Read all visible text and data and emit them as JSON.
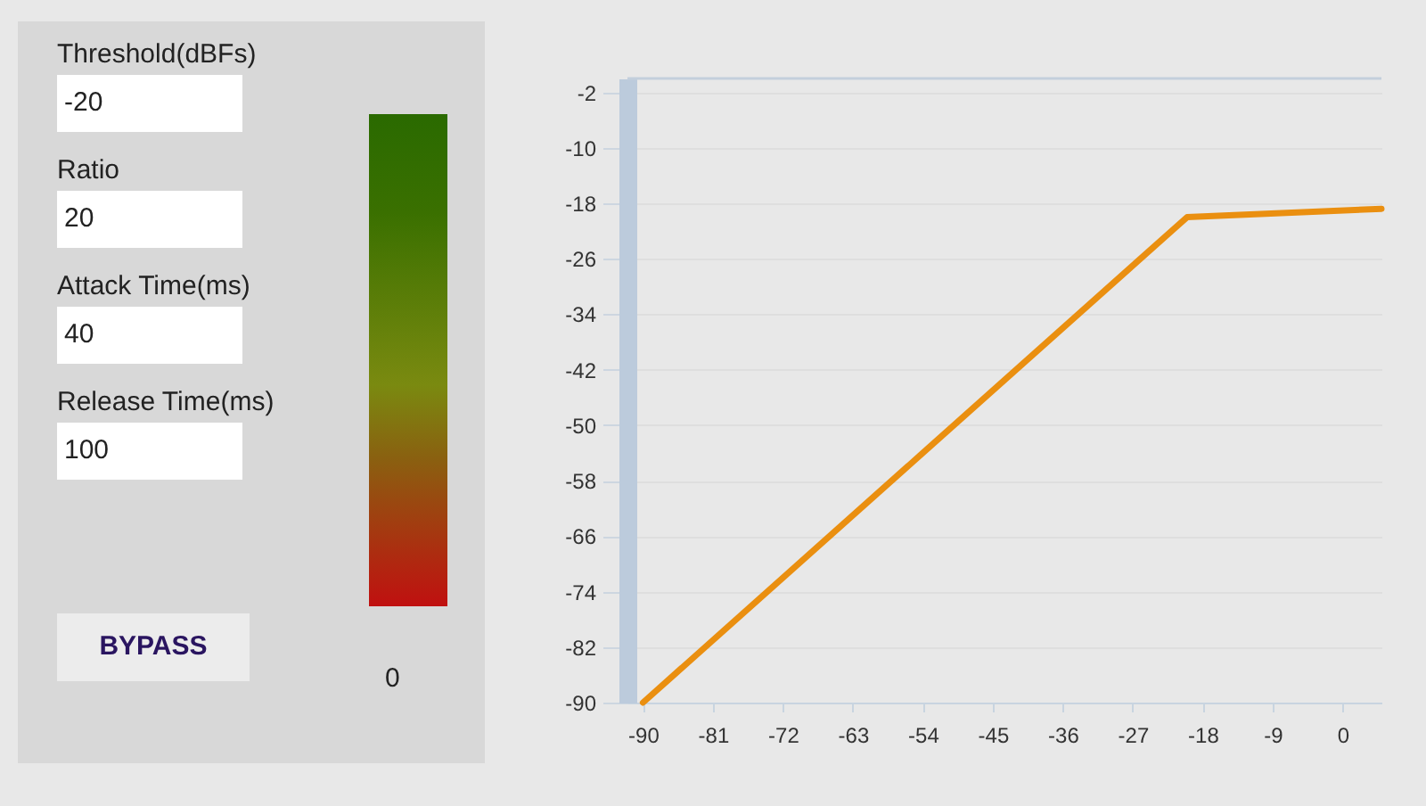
{
  "chart_data": [
    {
      "type": "other",
      "annotations": [
        "Threshold(dBFs)",
        "-20",
        "Ratio",
        "20",
        "Attack Time(ms)",
        "40",
        "Release Time(ms)",
        "100",
        "BYPASS",
        "0"
      ]
    },
    {
      "type": "line",
      "x": [
        -90,
        -20,
        5
      ],
      "xlim": [
        -92,
        5
      ],
      "xticks": [
        -90,
        -81,
        -72,
        -63,
        -54,
        -45,
        -36,
        -27,
        -18,
        -9,
        0
      ],
      "ylim": [
        -90,
        0
      ],
      "yticks": [
        -2,
        -10,
        -18,
        -26,
        -34,
        -42,
        -50,
        -58,
        -66,
        -74,
        -82,
        -90
      ],
      "series": [
        {
          "color": "#ea8f10",
          "values": [
            -90,
            -20,
            -18.8
          ]
        }
      ],
      "ref_lines": [
        {
          "axis": "y",
          "value": 0,
          "color": "#c3cfdc"
        }
      ],
      "grid": "y",
      "marker": "none",
      "line_style": "solid",
      "legend": false
    }
  ]
}
